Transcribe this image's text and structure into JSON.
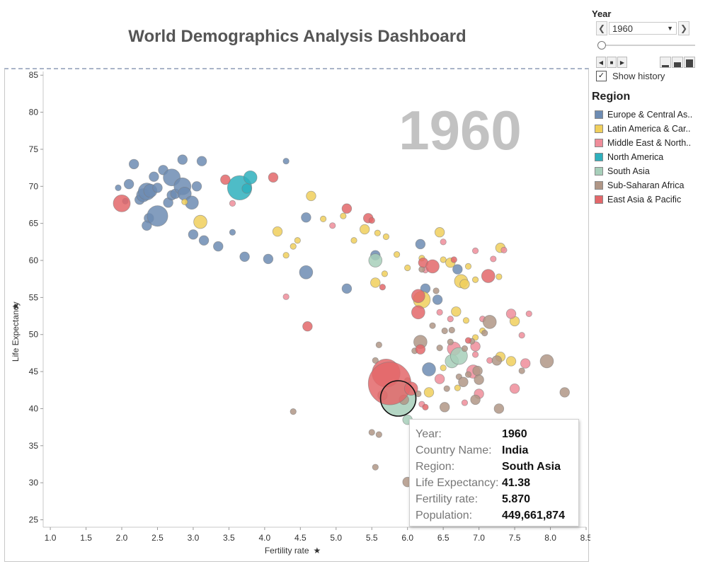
{
  "title": "World Demographics Analysis Dashboard",
  "controls": {
    "year_label": "Year",
    "year_value": "1960",
    "show_history_label": "Show history",
    "show_history_checked": true
  },
  "legend": {
    "title": "Region",
    "items": [
      {
        "label": "Europe & Central As..",
        "color": "#6d8cb3"
      },
      {
        "label": "Latin America & Car..",
        "color": "#f0cf5c"
      },
      {
        "label": "Middle East & North..",
        "color": "#ef8d9a"
      },
      {
        "label": "North America",
        "color": "#2fb0bd"
      },
      {
        "label": "South Asia",
        "color": "#a7cfba"
      },
      {
        "label": "Sub-Saharan Africa",
        "color": "#b09686"
      },
      {
        "label": "East Asia & Pacific",
        "color": "#e3676a"
      }
    ]
  },
  "tooltip": {
    "rows": [
      {
        "key": "Year:",
        "value": "1960"
      },
      {
        "key": "Country Name:",
        "value": "India"
      },
      {
        "key": "Region:",
        "value": "South Asia"
      },
      {
        "key": "Life Expectancy:",
        "value": "41.38"
      },
      {
        "key": "Fertility rate:",
        "value": "5.870"
      },
      {
        "key": "Population:",
        "value": "449,661,874"
      }
    ]
  },
  "chart_data": {
    "type": "scatter",
    "title": "",
    "watermark": "1960",
    "xlabel": "Fertility rate",
    "ylabel": "Life Expectancy",
    "xlim": [
      0.9,
      8.5
    ],
    "ylim": [
      24,
      85.5
    ],
    "xticks": [
      1.0,
      1.5,
      2.0,
      2.5,
      3.0,
      3.5,
      4.0,
      4.5,
      5.0,
      5.5,
      6.0,
      6.5,
      7.0,
      7.5,
      8.0,
      8.5
    ],
    "yticks": [
      25,
      30,
      35,
      40,
      45,
      50,
      55,
      60,
      65,
      70,
      75,
      80,
      85
    ],
    "size_measure": "Population",
    "region_colors": {
      "EU": "#6d8cb3",
      "LA": "#f0cf5c",
      "ME": "#ef8d9a",
      "NA": "#2fb0bd",
      "SA": "#a7cfba",
      "AF": "#b09686",
      "EA": "#e3676a"
    },
    "series": [
      {
        "name": "Europe & Central As..",
        "key": "EU",
        "points": [
          [
            1.95,
            69.8,
            1
          ],
          [
            2.05,
            68.0,
            1
          ],
          [
            2.1,
            70.3,
            2
          ],
          [
            2.17,
            73.0,
            2
          ],
          [
            2.25,
            68.2,
            2
          ],
          [
            2.3,
            68.8,
            3
          ],
          [
            2.35,
            69.3,
            4
          ],
          [
            2.38,
            65.7,
            2
          ],
          [
            2.35,
            64.7,
            2
          ],
          [
            2.4,
            69.4,
            3
          ],
          [
            2.45,
            71.3,
            2
          ],
          [
            2.5,
            66.0,
            5
          ],
          [
            2.5,
            69.8,
            2
          ],
          [
            2.58,
            72.2,
            2
          ],
          [
            2.65,
            67.8,
            2
          ],
          [
            2.7,
            71.2,
            4
          ],
          [
            2.7,
            68.8,
            2
          ],
          [
            2.75,
            69.0,
            2
          ],
          [
            2.85,
            70.0,
            4
          ],
          [
            2.88,
            69.0,
            3
          ],
          [
            2.85,
            73.6,
            2
          ],
          [
            2.98,
            67.8,
            3
          ],
          [
            3.05,
            70.0,
            2
          ],
          [
            3.12,
            73.4,
            2
          ],
          [
            3.0,
            63.5,
            2
          ],
          [
            3.15,
            62.7,
            2
          ],
          [
            3.35,
            61.9,
            2
          ],
          [
            3.55,
            63.8,
            1
          ],
          [
            3.72,
            60.5,
            2
          ],
          [
            4.05,
            60.2,
            2
          ],
          [
            4.3,
            73.4,
            1
          ],
          [
            4.58,
            65.8,
            2
          ],
          [
            4.58,
            58.4,
            3
          ],
          [
            5.15,
            56.2,
            2
          ],
          [
            5.55,
            60.7,
            2
          ],
          [
            6.18,
            62.2,
            2
          ],
          [
            6.25,
            56.2,
            2
          ],
          [
            6.42,
            54.7,
            2
          ],
          [
            6.7,
            58.8,
            2
          ],
          [
            6.3,
            45.3,
            3
          ]
        ]
      },
      {
        "name": "Latin America & Car..",
        "key": "LA",
        "points": [
          [
            2.88,
            67.9,
            1
          ],
          [
            3.1,
            65.2,
            3
          ],
          [
            4.18,
            63.9,
            2
          ],
          [
            4.3,
            60.7,
            1
          ],
          [
            4.4,
            61.9,
            1
          ],
          [
            4.46,
            62.7,
            1
          ],
          [
            4.65,
            68.7,
            2
          ],
          [
            4.82,
            65.6,
            1
          ],
          [
            5.1,
            66.0,
            1
          ],
          [
            5.25,
            62.7,
            1
          ],
          [
            5.4,
            64.2,
            2
          ],
          [
            5.58,
            63.7,
            1
          ],
          [
            5.7,
            63.2,
            1
          ],
          [
            5.85,
            60.8,
            1
          ],
          [
            5.68,
            58.2,
            1
          ],
          [
            5.55,
            57.0,
            2
          ],
          [
            6.0,
            59.0,
            1
          ],
          [
            6.2,
            60.3,
            1
          ],
          [
            6.45,
            63.8,
            2
          ],
          [
            6.5,
            60.1,
            1
          ],
          [
            6.6,
            59.7,
            2
          ],
          [
            6.75,
            57.2,
            3
          ],
          [
            6.8,
            56.8,
            2
          ],
          [
            6.85,
            59.2,
            1
          ],
          [
            6.95,
            57.4,
            1
          ],
          [
            7.28,
            57.8,
            1
          ],
          [
            7.3,
            61.7,
            2
          ],
          [
            6.2,
            54.7,
            4
          ],
          [
            6.68,
            53.1,
            2
          ],
          [
            6.82,
            51.9,
            1
          ],
          [
            6.95,
            49.6,
            1
          ],
          [
            7.5,
            51.8,
            2
          ],
          [
            7.05,
            50.5,
            1
          ],
          [
            7.3,
            47.0,
            2
          ],
          [
            7.45,
            46.4,
            2
          ],
          [
            6.3,
            42.2,
            2
          ],
          [
            6.7,
            42.8,
            1
          ],
          [
            6.5,
            45.5,
            1
          ]
        ]
      },
      {
        "name": "Middle East & North..",
        "key": "ME",
        "points": [
          [
            3.55,
            67.7,
            1
          ],
          [
            4.3,
            55.1,
            1
          ],
          [
            4.95,
            64.7,
            1
          ],
          [
            6.25,
            58.7,
            1
          ],
          [
            6.5,
            62.5,
            1
          ],
          [
            6.95,
            61.3,
            1
          ],
          [
            7.2,
            60.2,
            1
          ],
          [
            7.05,
            52.1,
            1
          ],
          [
            7.45,
            52.8,
            2
          ],
          [
            7.6,
            49.9,
            1
          ],
          [
            7.65,
            46.1,
            2
          ],
          [
            6.65,
            48.1,
            3
          ],
          [
            6.95,
            48.4,
            2
          ],
          [
            7.15,
            46.5,
            1
          ],
          [
            6.92,
            45.0,
            3
          ],
          [
            6.8,
            40.8,
            1
          ],
          [
            7.0,
            42.0,
            2
          ],
          [
            7.5,
            42.7,
            2
          ],
          [
            7.35,
            61.4,
            1
          ],
          [
            7.7,
            52.8,
            1
          ],
          [
            6.45,
            53.0,
            1
          ],
          [
            6.95,
            47.3,
            1
          ],
          [
            6.6,
            52.1,
            1
          ],
          [
            6.2,
            40.6,
            1
          ],
          [
            6.45,
            44.0,
            2
          ]
        ]
      },
      {
        "name": "North America",
        "key": "NA",
        "points": [
          [
            3.65,
            69.8,
            6
          ],
          [
            3.8,
            71.2,
            3
          ],
          [
            3.75,
            69.7,
            2
          ]
        ]
      },
      {
        "name": "South Asia",
        "key": "SA",
        "points": [
          [
            5.55,
            60.0,
            3
          ],
          [
            6.62,
            46.4,
            3
          ],
          [
            6.72,
            47.1,
            4
          ],
          [
            6.0,
            38.5,
            2
          ],
          [
            5.87,
            41.38,
            9
          ]
        ]
      },
      {
        "name": "Sub-Saharan Africa",
        "key": "AF",
        "points": [
          [
            4.4,
            39.6,
            1
          ],
          [
            5.55,
            46.5,
            1
          ],
          [
            5.6,
            48.6,
            1
          ],
          [
            5.5,
            36.8,
            1
          ],
          [
            5.55,
            32.1,
            1
          ],
          [
            5.6,
            36.5,
            1
          ],
          [
            5.65,
            41.8,
            2
          ],
          [
            5.95,
            41.2,
            2
          ],
          [
            6.0,
            43.8,
            1
          ],
          [
            6.1,
            47.8,
            1
          ],
          [
            6.18,
            49.0,
            3
          ],
          [
            6.2,
            58.8,
            1
          ],
          [
            6.35,
            51.2,
            1
          ],
          [
            6.4,
            55.9,
            1
          ],
          [
            6.45,
            48.2,
            1
          ],
          [
            6.52,
            50.5,
            1
          ],
          [
            6.55,
            42.7,
            1
          ],
          [
            6.6,
            49.0,
            1
          ],
          [
            6.62,
            50.6,
            1
          ],
          [
            6.72,
            44.3,
            1
          ],
          [
            6.78,
            43.6,
            2
          ],
          [
            6.8,
            48.1,
            1
          ],
          [
            6.85,
            44.6,
            1
          ],
          [
            6.9,
            49.1,
            1
          ],
          [
            6.95,
            41.2,
            2
          ],
          [
            6.98,
            45.1,
            2
          ],
          [
            7.0,
            43.9,
            2
          ],
          [
            7.08,
            50.2,
            1
          ],
          [
            7.15,
            51.7,
            3
          ],
          [
            7.25,
            46.5,
            2
          ],
          [
            7.28,
            40.0,
            2
          ],
          [
            7.6,
            45.1,
            1
          ],
          [
            7.95,
            46.4,
            3
          ],
          [
            8.2,
            42.2,
            2
          ],
          [
            6.52,
            40.2,
            2
          ],
          [
            6.0,
            30.1,
            2
          ],
          [
            6.15,
            42.0,
            1
          ]
        ]
      },
      {
        "name": "East Asia & Pacific",
        "key": "EA",
        "points": [
          [
            2.0,
            67.7,
            4
          ],
          [
            3.45,
            70.9,
            2
          ],
          [
            4.12,
            71.2,
            2
          ],
          [
            4.6,
            51.1,
            2
          ],
          [
            5.15,
            67.0,
            2
          ],
          [
            5.45,
            65.7,
            2
          ],
          [
            5.5,
            65.4,
            1
          ],
          [
            5.65,
            56.4,
            1
          ],
          [
            6.15,
            55.2,
            3
          ],
          [
            6.15,
            53.0,
            3
          ],
          [
            6.22,
            59.7,
            2
          ],
          [
            6.35,
            59.2,
            3
          ],
          [
            6.18,
            48.0,
            2
          ],
          [
            6.65,
            60.1,
            1
          ],
          [
            7.13,
            57.9,
            3
          ],
          [
            5.7,
            44.8,
            7
          ],
          [
            5.75,
            43.4,
            11
          ],
          [
            6.05,
            42.7,
            3
          ],
          [
            6.25,
            40.2,
            1
          ],
          [
            6.85,
            49.2,
            1
          ]
        ]
      }
    ],
    "highlight": {
      "country": "India",
      "region": "SA",
      "x": 5.87,
      "y": 41.38
    }
  }
}
